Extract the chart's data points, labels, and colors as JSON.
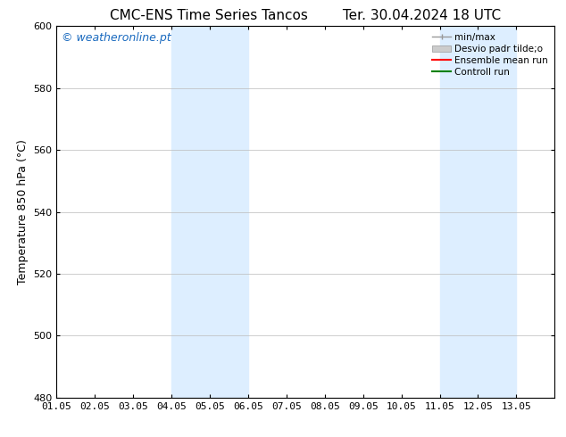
{
  "title_left": "CMC-ENS Time Series Tancos",
  "title_right": "Ter. 30.04.2024 18 UTC",
  "ylabel": "Temperature 850 hPa (°C)",
  "xlim_start": 0,
  "xlim_end": 13,
  "ylim": [
    480,
    600
  ],
  "yticks": [
    480,
    500,
    520,
    540,
    560,
    580,
    600
  ],
  "xtick_labels": [
    "01.05",
    "02.05",
    "03.05",
    "04.05",
    "05.05",
    "06.05",
    "07.05",
    "08.05",
    "09.05",
    "10.05",
    "11.05",
    "12.05",
    "13.05"
  ],
  "bg_color": "#ffffff",
  "plot_bg_color": "#ffffff",
  "shaded_bands": [
    {
      "x_start": 3.0,
      "x_end": 5.0,
      "color": "#ddeeff"
    },
    {
      "x_start": 10.0,
      "x_end": 12.0,
      "color": "#ddeeff"
    }
  ],
  "watermark_text": "© weatheronline.pt",
  "watermark_color": "#1a6abf",
  "watermark_fontsize": 9,
  "legend_labels": [
    "min/max",
    "Desvio padr tilde;o",
    "Ensemble mean run",
    "Controll run"
  ],
  "legend_colors": [
    "#999999",
    "#cccccc",
    "#ff0000",
    "#008000"
  ],
  "title_fontsize": 11,
  "tick_fontsize": 8,
  "ylabel_fontsize": 9,
  "grid_color": "#bbbbbb",
  "border_color": "#000000",
  "title_gap": "        "
}
